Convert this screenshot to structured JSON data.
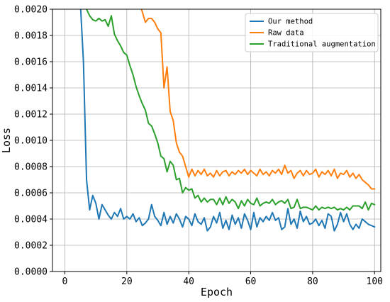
{
  "chart_data": {
    "type": "line",
    "xlabel": "Epoch",
    "ylabel": "Loss",
    "xlim": [
      -4,
      102
    ],
    "ylim": [
      0,
      0.002
    ],
    "xticks": [
      0,
      20,
      40,
      60,
      80,
      100
    ],
    "yticks": [
      0,
      0.0002,
      0.0004,
      0.0006,
      0.0008,
      0.001,
      0.0012,
      0.0014,
      0.0016,
      0.0018,
      0.002
    ],
    "ytick_labels": [
      "0.0000",
      "0.0002",
      "0.0004",
      "0.0006",
      "0.0008",
      "0.0010",
      "0.0012",
      "0.0014",
      "0.0016",
      "0.0018",
      "0.0020"
    ],
    "xtick_labels": [
      "0",
      "20",
      "40",
      "60",
      "80",
      "100"
    ],
    "grid": true,
    "legend_position": "top-right",
    "series": [
      {
        "name": "Our method",
        "color": "#1f77b4",
        "points": [
          [
            5,
            0.00205
          ],
          [
            6,
            0.0016
          ],
          [
            7,
            0.0007
          ],
          [
            8,
            0.00047
          ],
          [
            9,
            0.00058
          ],
          [
            10,
            0.00052
          ],
          [
            11,
            0.0004
          ],
          [
            12,
            0.00051
          ],
          [
            13,
            0.00047
          ],
          [
            14,
            0.00043
          ],
          [
            15,
            0.0004
          ],
          [
            16,
            0.00045
          ],
          [
            17,
            0.00042
          ],
          [
            18,
            0.00048
          ],
          [
            19,
            0.0004
          ],
          [
            20,
            0.00042
          ],
          [
            21,
            0.0004
          ],
          [
            22,
            0.00044
          ],
          [
            23,
            0.00038
          ],
          [
            24,
            0.00041
          ],
          [
            25,
            0.00035
          ],
          [
            26,
            0.00037
          ],
          [
            27,
            0.0004
          ],
          [
            28,
            0.00051
          ],
          [
            29,
            0.00042
          ],
          [
            30,
            0.00039
          ],
          [
            31,
            0.00035
          ],
          [
            32,
            0.00045
          ],
          [
            33,
            0.00036
          ],
          [
            34,
            0.00042
          ],
          [
            35,
            0.00037
          ],
          [
            36,
            0.00044
          ],
          [
            37,
            0.0004
          ],
          [
            38,
            0.00034
          ],
          [
            39,
            0.00042
          ],
          [
            40,
            0.0004
          ],
          [
            41,
            0.00035
          ],
          [
            42,
            0.00044
          ],
          [
            43,
            0.00038
          ],
          [
            44,
            0.00036
          ],
          [
            45,
            0.00041
          ],
          [
            46,
            0.00031
          ],
          [
            47,
            0.00034
          ],
          [
            48,
            0.00042
          ],
          [
            49,
            0.00037
          ],
          [
            50,
            0.00045
          ],
          [
            51,
            0.00033
          ],
          [
            52,
            0.00039
          ],
          [
            53,
            0.00032
          ],
          [
            54,
            0.00043
          ],
          [
            55,
            0.00036
          ],
          [
            56,
            0.00041
          ],
          [
            57,
            0.00033
          ],
          [
            58,
            0.00044
          ],
          [
            59,
            0.00039
          ],
          [
            60,
            0.00032
          ],
          [
            61,
            0.00045
          ],
          [
            62,
            0.00034
          ],
          [
            63,
            0.00041
          ],
          [
            64,
            0.00038
          ],
          [
            65,
            0.00042
          ],
          [
            66,
            0.00039
          ],
          [
            67,
            0.00045
          ],
          [
            68,
            0.00039
          ],
          [
            69,
            0.00041
          ],
          [
            70,
            0.00032
          ],
          [
            71,
            0.00034
          ],
          [
            72,
            0.00048
          ],
          [
            73,
            0.00036
          ],
          [
            74,
            0.0004
          ],
          [
            75,
            0.00033
          ],
          [
            76,
            0.00046
          ],
          [
            77,
            0.00038
          ],
          [
            78,
            0.00042
          ],
          [
            79,
            0.00036
          ],
          [
            80,
            0.00037
          ],
          [
            81,
            0.0004
          ],
          [
            82,
            0.00035
          ],
          [
            83,
            0.00039
          ],
          [
            84,
            0.00033
          ],
          [
            85,
            0.00044
          ],
          [
            86,
            0.00042
          ],
          [
            87,
            0.00031
          ],
          [
            88,
            0.00036
          ],
          [
            89,
            0.00045
          ],
          [
            90,
            0.00038
          ],
          [
            91,
            0.00044
          ],
          [
            92,
            0.00036
          ],
          [
            93,
            0.00032
          ],
          [
            94,
            0.00036
          ],
          [
            95,
            0.00033
          ],
          [
            96,
            0.0004
          ],
          [
            97,
            0.00038
          ],
          [
            98,
            0.00036
          ],
          [
            99,
            0.00035
          ],
          [
            100,
            0.00034
          ]
        ]
      },
      {
        "name": "Raw data",
        "color": "#ff7f0e",
        "points": [
          [
            24,
            0.00205
          ],
          [
            25,
            0.00198
          ],
          [
            26,
            0.0019
          ],
          [
            27,
            0.00193
          ],
          [
            28,
            0.00193
          ],
          [
            29,
            0.0019
          ],
          [
            30,
            0.00185
          ],
          [
            31,
            0.00182
          ],
          [
            32,
            0.0014
          ],
          [
            33,
            0.00156
          ],
          [
            34,
            0.00122
          ],
          [
            35,
            0.00115
          ],
          [
            36,
            0.00098
          ],
          [
            37,
            0.00091
          ],
          [
            38,
            0.00088
          ],
          [
            39,
            0.0008
          ],
          [
            40,
            0.00072
          ],
          [
            41,
            0.00078
          ],
          [
            42,
            0.00073
          ],
          [
            43,
            0.00077
          ],
          [
            44,
            0.00074
          ],
          [
            45,
            0.00078
          ],
          [
            46,
            0.00073
          ],
          [
            47,
            0.00075
          ],
          [
            48,
            0.00072
          ],
          [
            49,
            0.00077
          ],
          [
            50,
            0.00073
          ],
          [
            51,
            0.00076
          ],
          [
            52,
            0.00077
          ],
          [
            53,
            0.00073
          ],
          [
            54,
            0.00076
          ],
          [
            55,
            0.00074
          ],
          [
            56,
            0.00077
          ],
          [
            57,
            0.00075
          ],
          [
            58,
            0.00078
          ],
          [
            59,
            0.00074
          ],
          [
            60,
            0.00077
          ],
          [
            61,
            0.00075
          ],
          [
            62,
            0.00073
          ],
          [
            63,
            0.00078
          ],
          [
            64,
            0.00074
          ],
          [
            65,
            0.00076
          ],
          [
            66,
            0.00073
          ],
          [
            67,
            0.00077
          ],
          [
            68,
            0.00075
          ],
          [
            69,
            0.00078
          ],
          [
            70,
            0.00074
          ],
          [
            71,
            0.00081
          ],
          [
            72,
            0.00075
          ],
          [
            73,
            0.00077
          ],
          [
            74,
            0.00071
          ],
          [
            75,
            0.00075
          ],
          [
            76,
            0.00077
          ],
          [
            77,
            0.00073
          ],
          [
            78,
            0.00077
          ],
          [
            79,
            0.00074
          ],
          [
            80,
            0.00075
          ],
          [
            81,
            0.00078
          ],
          [
            82,
            0.00072
          ],
          [
            83,
            0.00076
          ],
          [
            84,
            0.00074
          ],
          [
            85,
            0.00077
          ],
          [
            86,
            0.00073
          ],
          [
            87,
            0.00078
          ],
          [
            88,
            0.00071
          ],
          [
            89,
            0.00075
          ],
          [
            90,
            0.00074
          ],
          [
            91,
            0.00077
          ],
          [
            92,
            0.00072
          ],
          [
            93,
            0.00075
          ],
          [
            94,
            0.00071
          ],
          [
            95,
            0.00074
          ],
          [
            96,
            0.0007
          ],
          [
            97,
            0.00068
          ],
          [
            98,
            0.00066
          ],
          [
            99,
            0.00063
          ],
          [
            100,
            0.00063
          ]
        ]
      },
      {
        "name": "Traditional augmentation",
        "color": "#2ca02c",
        "points": [
          [
            6,
            0.00205
          ],
          [
            7,
            0.002
          ],
          [
            8,
            0.00195
          ],
          [
            9,
            0.00192
          ],
          [
            10,
            0.00191
          ],
          [
            11,
            0.00193
          ],
          [
            12,
            0.00191
          ],
          [
            13,
            0.00192
          ],
          [
            14,
            0.00187
          ],
          [
            15,
            0.00195
          ],
          [
            16,
            0.00181
          ],
          [
            17,
            0.00176
          ],
          [
            18,
            0.00172
          ],
          [
            19,
            0.00167
          ],
          [
            20,
            0.00165
          ],
          [
            21,
            0.00157
          ],
          [
            22,
            0.0015
          ],
          [
            23,
            0.00141
          ],
          [
            24,
            0.00134
          ],
          [
            25,
            0.00128
          ],
          [
            26,
            0.00123
          ],
          [
            27,
            0.00113
          ],
          [
            28,
            0.00111
          ],
          [
            29,
            0.00105
          ],
          [
            30,
            0.00098
          ],
          [
            31,
            0.00088
          ],
          [
            32,
            0.00086
          ],
          [
            33,
            0.00076
          ],
          [
            34,
            0.00084
          ],
          [
            35,
            0.00081
          ],
          [
            36,
            0.0007
          ],
          [
            37,
            0.00071
          ],
          [
            38,
            0.0006
          ],
          [
            39,
            0.00064
          ],
          [
            40,
            0.00062
          ],
          [
            41,
            0.00063
          ],
          [
            42,
            0.00056
          ],
          [
            43,
            0.00058
          ],
          [
            44,
            0.00053
          ],
          [
            45,
            0.00056
          ],
          [
            46,
            0.00053
          ],
          [
            47,
            0.00055
          ],
          [
            48,
            0.00055
          ],
          [
            49,
            0.00051
          ],
          [
            50,
            0.00056
          ],
          [
            51,
            0.00051
          ],
          [
            52,
            0.00057
          ],
          [
            53,
            0.00052
          ],
          [
            54,
            0.00055
          ],
          [
            55,
            0.00053
          ],
          [
            56,
            0.00048
          ],
          [
            57,
            0.00054
          ],
          [
            58,
            0.0005
          ],
          [
            59,
            0.00055
          ],
          [
            60,
            0.00052
          ],
          [
            61,
            0.00051
          ],
          [
            62,
            0.00056
          ],
          [
            63,
            0.0005
          ],
          [
            64,
            0.00052
          ],
          [
            65,
            0.00053
          ],
          [
            66,
            0.00052
          ],
          [
            67,
            0.00055
          ],
          [
            68,
            0.00051
          ],
          [
            69,
            0.00053
          ],
          [
            70,
            0.00054
          ],
          [
            71,
            0.00052
          ],
          [
            72,
            0.00055
          ],
          [
            73,
            0.00048
          ],
          [
            74,
            0.00049
          ],
          [
            75,
            0.00055
          ],
          [
            76,
            0.00048
          ],
          [
            77,
            0.00049
          ],
          [
            78,
            0.00049
          ],
          [
            79,
            0.00048
          ],
          [
            80,
            0.00047
          ],
          [
            81,
            0.0005
          ],
          [
            82,
            0.00047
          ],
          [
            83,
            0.00049
          ],
          [
            84,
            0.00048
          ],
          [
            85,
            0.00049
          ],
          [
            86,
            0.00048
          ],
          [
            87,
            0.00049
          ],
          [
            88,
            0.00047
          ],
          [
            89,
            0.00048
          ],
          [
            90,
            0.00047
          ],
          [
            91,
            0.00049
          ],
          [
            92,
            0.00047
          ],
          [
            93,
            0.0005
          ],
          [
            94,
            0.0005
          ],
          [
            95,
            0.0005
          ],
          [
            96,
            0.00048
          ],
          [
            97,
            0.00053
          ],
          [
            98,
            0.00047
          ],
          [
            99,
            0.00052
          ],
          [
            100,
            0.00051
          ]
        ]
      }
    ]
  }
}
